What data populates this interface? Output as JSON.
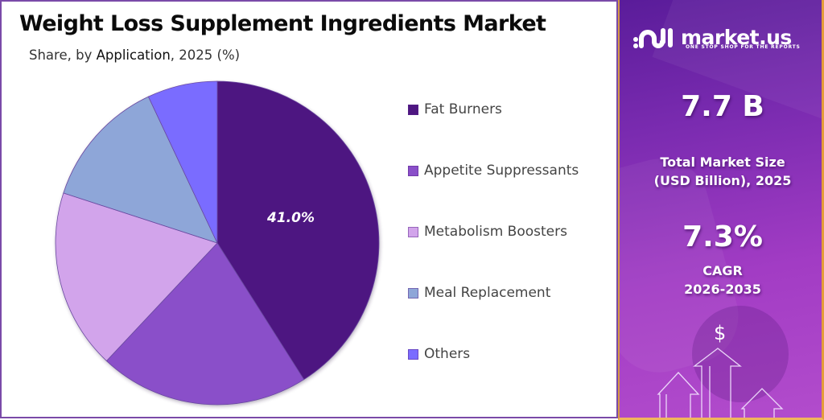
{
  "header": {
    "title": "Weight Loss Supplement Ingredients Market",
    "subtitle_prefix": "Share, by ",
    "subtitle_emph": "Application",
    "subtitle_suffix": ", 2025 (%)"
  },
  "chart_data": {
    "type": "pie",
    "title": "Weight Loss Supplement Ingredients Market",
    "subtitle": "Share, by Application, 2025 (%)",
    "categories": [
      "Fat Burners",
      "Appetite Suppressants",
      "Metabolism Boosters",
      "Meal Replacement",
      "Others"
    ],
    "values": [
      41.0,
      21.0,
      18.0,
      13.0,
      7.0
    ],
    "colors": [
      "#4e1681",
      "#8a4fc9",
      "#d2a4eb",
      "#8ea6d8",
      "#7a6cff"
    ],
    "data_labels": [
      "41.0%",
      "",
      "",
      "",
      ""
    ],
    "start_angle": "12 o'clock, clockwise",
    "legend_position": "right"
  },
  "pie": {
    "highlight_label": "41.0%"
  },
  "legend": {
    "items": [
      {
        "label": "Fat Burners",
        "color": "#4e1681"
      },
      {
        "label": "Appetite Suppressants",
        "color": "#8a4fc9"
      },
      {
        "label": "Metabolism Boosters",
        "color": "#d2a4eb"
      },
      {
        "label": "Meal Replacement",
        "color": "#8ea6d8"
      },
      {
        "label": "Others",
        "color": "#7a6cff"
      }
    ]
  },
  "sidebar": {
    "brand": "market.us",
    "tagline": "ONE STOP SHOP FOR THE REPORTS",
    "market_size_value": "7.7 B",
    "market_size_label_1": "Total Market Size",
    "market_size_label_2": "(USD Billion), 2025",
    "cagr_value": "7.3%",
    "cagr_label_1": "CAGR",
    "cagr_label_2": "2026-2035",
    "currency_symbol": "$"
  },
  "colors": {
    "border": "#7a4aa8",
    "sidebar_accent": "#e49c3a"
  }
}
